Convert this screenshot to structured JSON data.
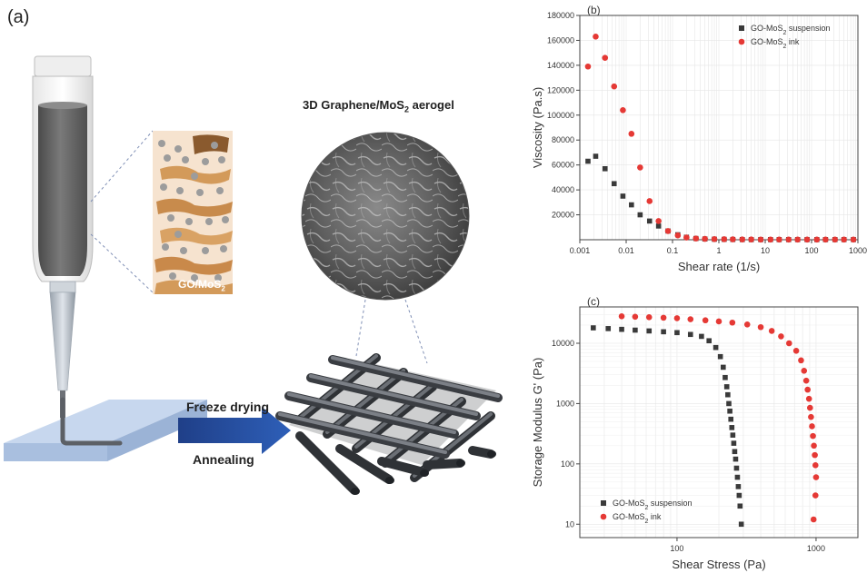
{
  "panel_a": {
    "label": "(a)",
    "aerogel_title": "3D Graphene/MoS",
    "aerogel_sub": "2",
    "aerogel_title_end": " aerogel",
    "inset_label": "GO/MoS",
    "inset_sub": "2",
    "step1": "Freeze drying",
    "step2": "Annealing"
  },
  "chart_data": [
    {
      "id": "b",
      "panel_label": "(b)",
      "type": "scatter",
      "xscale": "log",
      "xlabel": "Shear rate (1/s)",
      "ylabel": "Viscosity (Pa.s)",
      "xlim": [
        0.001,
        1000
      ],
      "ylim": [
        0,
        180000
      ],
      "xticks": [
        {
          "v": 0.001,
          "label": "0.001"
        },
        {
          "v": 0.01,
          "label": "0.01"
        },
        {
          "v": 0.1,
          "label": "0.1"
        },
        {
          "v": 1,
          "label": "1"
        },
        {
          "v": 10,
          "label": "10"
        },
        {
          "v": 100,
          "label": "100"
        },
        {
          "v": 1000,
          "label": "1000"
        }
      ],
      "yticks": [
        {
          "v": 20000,
          "label": "20000"
        },
        {
          "v": 40000,
          "label": "40000"
        },
        {
          "v": 60000,
          "label": "60000"
        },
        {
          "v": 80000,
          "label": "80000"
        },
        {
          "v": 100000,
          "label": "100000"
        },
        {
          "v": 120000,
          "label": "120000"
        },
        {
          "v": 140000,
          "label": "140000"
        },
        {
          "v": 160000,
          "label": "160000"
        },
        {
          "v": 180000,
          "label": "180000"
        }
      ],
      "legend": "top-right",
      "series": [
        {
          "name": "GO-MoS",
          "name_sub": "2",
          "name_end": " suspension",
          "marker": "square",
          "color": "#3a3a3a",
          "x": [
            0.0015,
            0.0022,
            0.0035,
            0.0055,
            0.0085,
            0.013,
            0.02,
            0.032,
            0.05,
            0.08,
            0.13,
            0.2,
            0.32,
            0.5,
            0.8,
            1.3,
            2,
            3.2,
            5,
            8,
            13,
            20,
            32,
            50,
            80,
            130,
            200,
            320,
            500,
            800
          ],
          "y": [
            63000,
            67000,
            57000,
            45000,
            35000,
            28000,
            20000,
            15000,
            11000,
            7000,
            4000,
            2000,
            1000,
            600,
            400,
            300,
            200,
            150,
            100,
            100,
            100,
            100,
            100,
            100,
            100,
            100,
            100,
            100,
            100,
            100
          ]
        },
        {
          "name": "GO-MoS",
          "name_sub": "2",
          "name_end": " ink",
          "marker": "circle",
          "color": "#e53935",
          "x": [
            0.0015,
            0.0022,
            0.0035,
            0.0055,
            0.0085,
            0.013,
            0.02,
            0.032,
            0.05,
            0.08,
            0.13,
            0.2,
            0.32,
            0.5,
            0.8,
            1.3,
            2,
            3.2,
            5,
            8,
            13,
            20,
            32,
            50,
            80,
            130,
            200,
            320,
            500,
            800
          ],
          "y": [
            139000,
            163000,
            146000,
            123000,
            104000,
            85000,
            58000,
            31000,
            15000,
            7000,
            3500,
            1800,
            1000,
            700,
            500,
            400,
            300,
            250,
            200,
            150,
            150,
            150,
            150,
            150,
            150,
            150,
            150,
            150,
            150,
            150
          ]
        }
      ]
    },
    {
      "id": "c",
      "panel_label": "(c)",
      "type": "scatter",
      "xscale": "log",
      "yscale": "log",
      "xlabel": "Shear Stress (Pa)",
      "ylabel": "Storage Modulus G' (Pa)",
      "xlim": [
        20,
        2000
      ],
      "ylim": [
        6,
        40000
      ],
      "xticks": [
        {
          "v": 100,
          "label": "100"
        },
        {
          "v": 1000,
          "label": "1000"
        }
      ],
      "yticks": [
        {
          "v": 10,
          "label": "10"
        },
        {
          "v": 100,
          "label": "100"
        },
        {
          "v": 1000,
          "label": "1000"
        },
        {
          "v": 10000,
          "label": "10000"
        }
      ],
      "legend": "bottom-left",
      "series": [
        {
          "name": "GO-MoS",
          "name_sub": "2",
          "name_end": " suspension",
          "marker": "square",
          "color": "#3a3a3a",
          "x": [
            25,
            32,
            40,
            50,
            63,
            80,
            100,
            125,
            150,
            170,
            190,
            205,
            215,
            222,
            228,
            232,
            236,
            240,
            244,
            248,
            252,
            256,
            260,
            264,
            268,
            272,
            276,
            280,
            284,
            290
          ],
          "y": [
            18000,
            17500,
            17000,
            16500,
            16000,
            15500,
            15000,
            14000,
            13000,
            11000,
            8500,
            6000,
            4000,
            2700,
            1900,
            1400,
            1000,
            750,
            550,
            400,
            300,
            220,
            160,
            120,
            85,
            60,
            42,
            30,
            20,
            10
          ]
        },
        {
          "name": "GO-MoS",
          "name_sub": "2",
          "name_end": " ink",
          "marker": "circle",
          "color": "#e53935",
          "x": [
            40,
            50,
            63,
            80,
            100,
            125,
            160,
            200,
            250,
            320,
            400,
            480,
            560,
            640,
            720,
            780,
            820,
            850,
            870,
            890,
            905,
            920,
            935,
            950,
            965,
            980,
            990,
            1000,
            990,
            960
          ],
          "y": [
            28000,
            27500,
            27000,
            26500,
            26000,
            25000,
            24000,
            23000,
            22000,
            20500,
            18500,
            16000,
            13000,
            10000,
            7500,
            5200,
            3500,
            2400,
            1700,
            1200,
            850,
            600,
            420,
            290,
            200,
            140,
            95,
            60,
            30,
            12
          ]
        }
      ]
    }
  ]
}
